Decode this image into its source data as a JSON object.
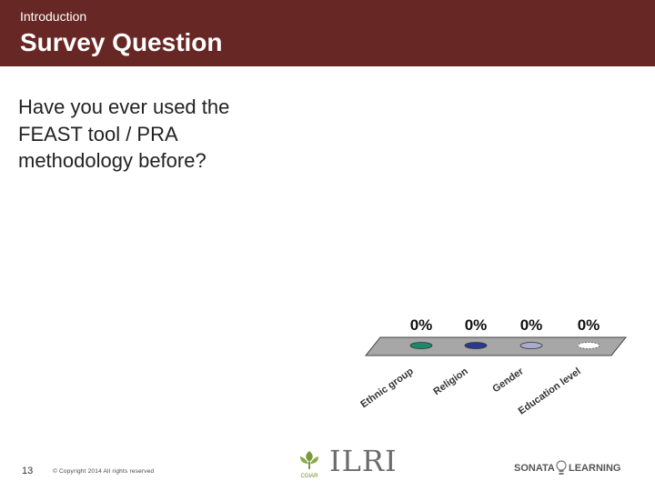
{
  "header": {
    "kicker": "Introduction",
    "title": "Survey Question"
  },
  "question": {
    "text": "Have you ever used the FEAST tool / PRA methodology before?"
  },
  "chart_data": {
    "type": "bar",
    "categories": [
      "Ethnic group",
      "Religion",
      "Gender",
      "Education level"
    ],
    "values": [
      0,
      0,
      0,
      0
    ],
    "value_labels": [
      "0%",
      "0%",
      "0%",
      "0%"
    ],
    "colors": [
      "#1a8a6a",
      "#2b3a8f",
      "#aaaacc",
      "#ffffff"
    ],
    "ylim": [
      0,
      100
    ],
    "grid": false,
    "legend": "none"
  },
  "footer": {
    "page_number": "13",
    "copyright": "© Copyright 2014 All rights reserved",
    "cgiar_label": "CGIAR",
    "ilri_label": "ILRI",
    "sonata_left": "SONATA",
    "sonata_right": "LEARNING"
  },
  "colors": {
    "header_bg": "#672825",
    "floor": "#a7a7a7"
  }
}
